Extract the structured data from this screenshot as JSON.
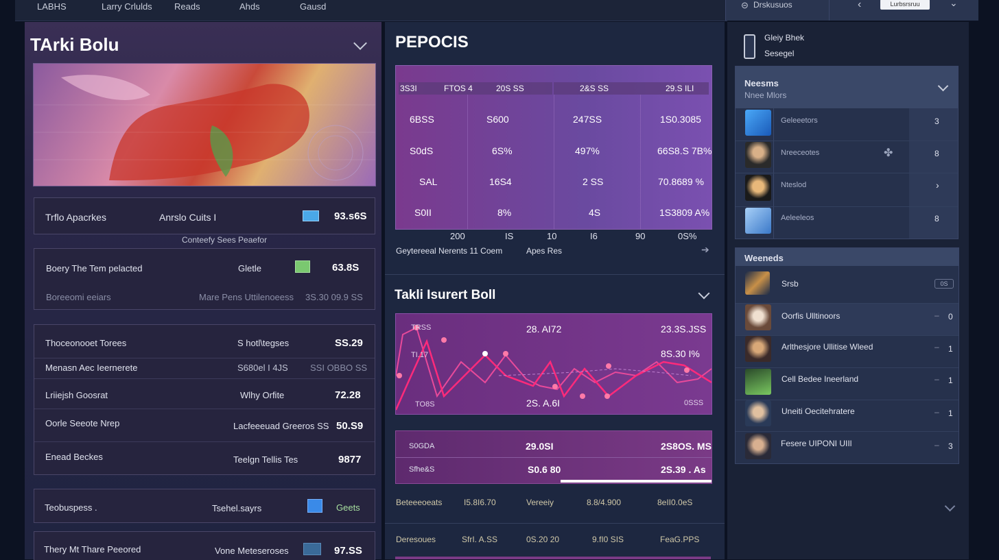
{
  "topbar": {
    "tabs": [
      "LABHS",
      "Larry Crlulds",
      "Reads",
      "Ahds",
      "Gausd"
    ],
    "search_label": "Drskusuos",
    "button_label": "Lurbsrsruu"
  },
  "left": {
    "title": "TArki Bolu",
    "summary": {
      "label": "Trflo Apacrkes",
      "middle": "Anrslo Cuits I",
      "value": "93.s6S",
      "footnote": "Conteefy Sees Peaefor"
    },
    "card2": {
      "label": "Boery The  Tem pelacted",
      "middle": "Gletle",
      "value": "63.8S",
      "sub_label": "Boreeomi eeiars",
      "sub_middle": "Mare Pens Uttilenoeess",
      "sub_value": "3S.30 09.9 SS"
    },
    "list": [
      {
        "label": "Thoceonooet Torees",
        "middle": "S hotl\\tegses",
        "value": "SS.29"
      },
      {
        "label": "Menasn Aec  Ieernerete",
        "middle": "S680el I 4JS",
        "value": "SSI  OBBO SS"
      },
      {
        "label": "Lriiejsh Goosrat",
        "middle": "Wlhy Orfite",
        "value": "72.28"
      },
      {
        "label": "Oorle Seeote Nrep",
        "middle": "Lacfeeeuad Greeros SS",
        "value": "50.S9"
      },
      {
        "label": "Enead Beckes",
        "middle": "Teelgn Tellis Tes",
        "value": "9877"
      }
    ],
    "card3": {
      "label": "Teobuspess .",
      "middle": "Tsehel.sayrs",
      "value": "Geets"
    },
    "card4": {
      "label": "Thery Mt Thare Peeored",
      "middle": "Vone Meteseroses",
      "value": "97.SS"
    }
  },
  "middle": {
    "title": "PEPOCIS",
    "table": {
      "header": [
        "3S3I",
        "FTOS 4",
        "20S SS",
        "2&S SS",
        "29.S ILI"
      ],
      "rows": [
        [
          "6BSS",
          "S600",
          "247SS",
          "1S0.3085"
        ],
        [
          "S0dS",
          "6S%",
          "497%",
          "66S8.S 7B%"
        ],
        [
          "SAL",
          "16S4",
          "2 SS",
          "70.8689 %"
        ],
        [
          "S0II",
          "8%",
          "4S",
          "1S3809 A%"
        ]
      ],
      "axis": [
        "200",
        "IS",
        "10",
        "I6",
        "90",
        "0S%"
      ]
    },
    "caption": [
      "Geytereeal Nerents 11  Coem",
      "Apes Res"
    ],
    "section_title": "Takli Isurert Boll",
    "chart": {
      "labels": [
        "TRSS",
        "TI.17",
        "TO8S",
        "28. AI72",
        "23.3S.JSS",
        "8S.30 I%",
        "2S. A.6I",
        "0SSS"
      ]
    },
    "table2": {
      "rows": [
        [
          "S0GDA",
          "29.0SI",
          "2S8OS. MS"
        ],
        [
          "Sfhe&S",
          "S0.6 80",
          "2S.39 . As"
        ]
      ]
    },
    "footer_rows": [
      [
        "Beteeeoeats",
        "I5.8I6.70",
        "Vereeiy",
        "8.8/4.900",
        "8eII0.0eS"
      ],
      [
        "Deresoues",
        "SfrI. A.SS",
        "0S.20 20",
        "9.fI0 SIS",
        "FeaG.PPS"
      ]
    ]
  },
  "right": {
    "device_title": "Gleiy Bhek",
    "device_sub": "Sesegel",
    "panel1": {
      "title": "Neesms",
      "subtitle": "Nnee Mlors",
      "items": [
        {
          "label": "Geleeetors",
          "value": "3"
        },
        {
          "label": "Nreeceotes",
          "value": "8"
        },
        {
          "label": "Nteslod",
          "value": "›"
        },
        {
          "label": "Aeleeleos",
          "value": "8"
        }
      ]
    },
    "panel2": {
      "title": "Weeneds",
      "items": [
        {
          "label": "Srsb",
          "value": "0S"
        },
        {
          "label": "Oorfis Ulltinoors",
          "value": "0"
        },
        {
          "label": "Arlthesjore Ullitise Wleed",
          "value": "1"
        },
        {
          "label": "Cell Bedee Ineerland",
          "value": "1"
        },
        {
          "label": "Uneiti Oecitehratere",
          "value": "1"
        },
        {
          "label": "Fesere UIPONI UIIl",
          "value": "3"
        }
      ]
    }
  }
}
